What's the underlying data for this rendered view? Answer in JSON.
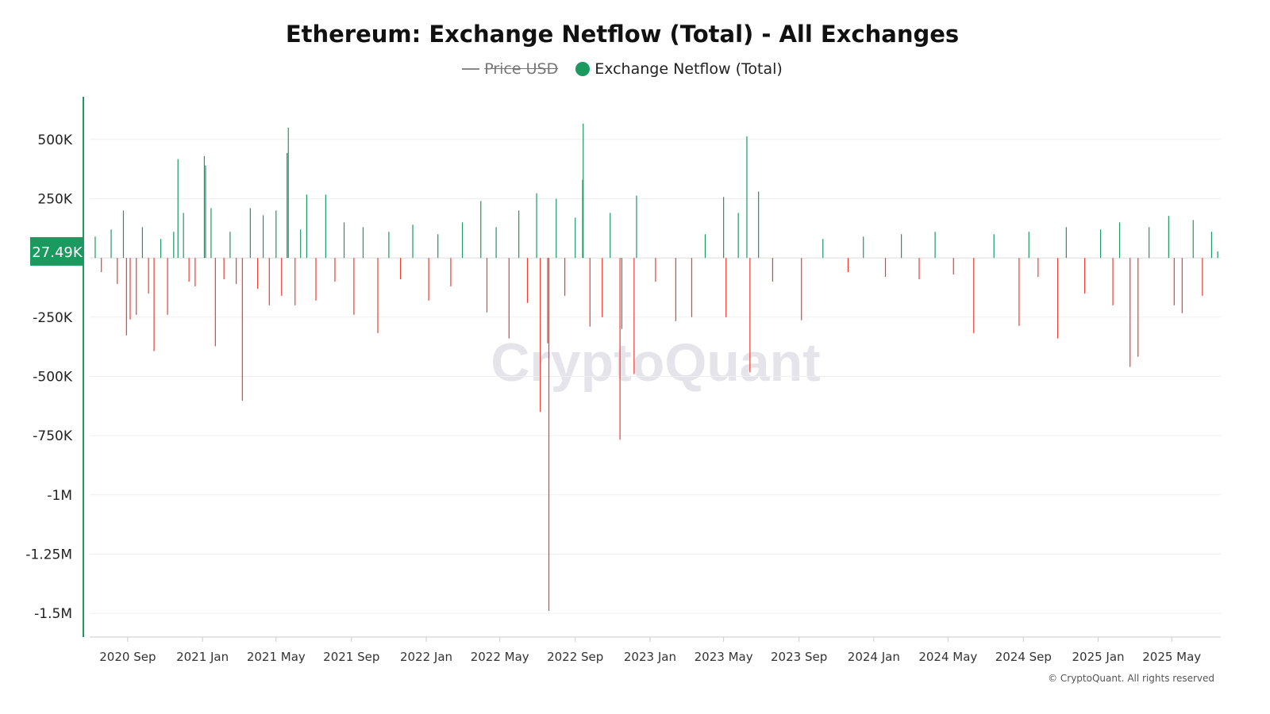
{
  "chart_data": {
    "type": "bar",
    "title": "Ethereum: Exchange Netflow (Total) - All Exchanges",
    "legend": [
      {
        "label": "Price USD",
        "hidden": true,
        "color": "#888888"
      },
      {
        "label": "Exchange Netflow (Total)",
        "hidden": false,
        "color": "#1a9a5f"
      }
    ],
    "legend_position": "top",
    "colors": {
      "positive": "#1a9a5f",
      "negative": "#f23b2f",
      "axis": "#1a9a5f"
    },
    "grid": true,
    "xlim": [
      "2020-07-01",
      "2025-07-20"
    ],
    "ylim": [
      -1600000,
      680000
    ],
    "x_ticks": [
      "2020 Sep",
      "2021 Jan",
      "2021 May",
      "2021 Sep",
      "2022 Jan",
      "2022 May",
      "2022 Sep",
      "2023 Jan",
      "2023 May",
      "2023 Sep",
      "2024 Jan",
      "2024 May",
      "2024 Sep",
      "2025 Jan",
      "2025 May"
    ],
    "y_ticks": [
      {
        "value": 500000,
        "label": "500K"
      },
      {
        "value": 250000,
        "label": "250K"
      },
      {
        "value": -250000,
        "label": "-250K"
      },
      {
        "value": -500000,
        "label": "-500K"
      },
      {
        "value": -750000,
        "label": "-750K"
      },
      {
        "value": -1000000,
        "label": "-1M"
      },
      {
        "value": -1250000,
        "label": "-1.25M"
      },
      {
        "value": -1500000,
        "label": "-1.5M"
      }
    ],
    "current_value_label": "27.49K",
    "points": [
      [
        "2020-07-10",
        90000
      ],
      [
        "2020-07-20",
        -60000
      ],
      [
        "2020-08-05",
        120000
      ],
      [
        "2020-08-15",
        -110000
      ],
      [
        "2020-08-25",
        200000
      ],
      [
        "2020-08-30",
        -327000
      ],
      [
        "2020-09-05",
        -260000
      ],
      [
        "2020-09-15",
        -240000
      ],
      [
        "2020-09-25",
        130000
      ],
      [
        "2020-10-05",
        -150000
      ],
      [
        "2020-10-14",
        -393000
      ],
      [
        "2020-10-25",
        80000
      ],
      [
        "2020-11-05",
        -240000
      ],
      [
        "2020-11-15",
        110000
      ],
      [
        "2020-11-22",
        417000
      ],
      [
        "2020-12-01",
        190000
      ],
      [
        "2020-12-10",
        -100000
      ],
      [
        "2020-12-20",
        -120000
      ],
      [
        "2021-01-04",
        430000
      ],
      [
        "2021-01-06",
        390000
      ],
      [
        "2021-01-15",
        210000
      ],
      [
        "2021-01-22",
        -373000
      ],
      [
        "2021-02-05",
        -90000
      ],
      [
        "2021-02-15",
        110000
      ],
      [
        "2021-02-25",
        -110000
      ],
      [
        "2021-03-07",
        -603000
      ],
      [
        "2021-03-20",
        210000
      ],
      [
        "2021-04-01",
        -130000
      ],
      [
        "2021-04-10",
        180000
      ],
      [
        "2021-04-20",
        -200000
      ],
      [
        "2021-05-01",
        200000
      ],
      [
        "2021-05-10",
        -160000
      ],
      [
        "2021-05-19",
        443000
      ],
      [
        "2021-05-21",
        550000
      ],
      [
        "2021-06-01",
        -200000
      ],
      [
        "2021-06-10",
        120000
      ],
      [
        "2021-06-20",
        267000
      ],
      [
        "2021-07-05",
        -180000
      ],
      [
        "2021-07-21",
        267000
      ],
      [
        "2021-08-05",
        -100000
      ],
      [
        "2021-08-20",
        150000
      ],
      [
        "2021-09-05",
        -240000
      ],
      [
        "2021-09-20",
        130000
      ],
      [
        "2021-10-14",
        -317000
      ],
      [
        "2021-11-01",
        110000
      ],
      [
        "2021-11-20",
        -90000
      ],
      [
        "2021-12-10",
        140000
      ],
      [
        "2022-01-05",
        -180000
      ],
      [
        "2022-01-20",
        100000
      ],
      [
        "2022-02-10",
        -120000
      ],
      [
        "2022-03-01",
        150000
      ],
      [
        "2022-03-31",
        240000
      ],
      [
        "2022-04-10",
        -230000
      ],
      [
        "2022-04-25",
        130000
      ],
      [
        "2022-05-16",
        -340000
      ],
      [
        "2022-06-01",
        200000
      ],
      [
        "2022-06-15",
        -190000
      ],
      [
        "2022-06-30",
        273000
      ],
      [
        "2022-07-06",
        -650000
      ],
      [
        "2022-07-18",
        -360000
      ],
      [
        "2022-07-20",
        -1490000
      ],
      [
        "2022-08-01",
        250000
      ],
      [
        "2022-08-15",
        -160000
      ],
      [
        "2022-09-01",
        170000
      ],
      [
        "2022-09-13",
        330000
      ],
      [
        "2022-09-14",
        567000
      ],
      [
        "2022-09-25",
        -290000
      ],
      [
        "2022-10-15",
        -250000
      ],
      [
        "2022-10-28",
        190000
      ],
      [
        "2022-11-13",
        -767000
      ],
      [
        "2022-11-16",
        -300000
      ],
      [
        "2022-12-06",
        -490000
      ],
      [
        "2022-12-10",
        263000
      ],
      [
        "2023-01-10",
        -100000
      ],
      [
        "2023-02-12",
        -267000
      ],
      [
        "2023-03-10",
        -250000
      ],
      [
        "2023-04-01",
        100000
      ],
      [
        "2023-05-01",
        257000
      ],
      [
        "2023-05-05",
        -250000
      ],
      [
        "2023-05-25",
        190000
      ],
      [
        "2023-06-08",
        513000
      ],
      [
        "2023-06-13",
        -483000
      ],
      [
        "2023-06-27",
        280000
      ],
      [
        "2023-07-20",
        -100000
      ],
      [
        "2023-09-05",
        -263000
      ],
      [
        "2023-10-10",
        80000
      ],
      [
        "2023-11-20",
        -60000
      ],
      [
        "2023-12-15",
        90000
      ],
      [
        "2024-01-20",
        -80000
      ],
      [
        "2024-02-15",
        100000
      ],
      [
        "2024-03-15",
        -90000
      ],
      [
        "2024-04-10",
        110000
      ],
      [
        "2024-05-10",
        -70000
      ],
      [
        "2024-06-12",
        -317000
      ],
      [
        "2024-07-15",
        100000
      ],
      [
        "2024-08-25",
        -287000
      ],
      [
        "2024-09-10",
        110000
      ],
      [
        "2024-09-25",
        -80000
      ],
      [
        "2024-10-27",
        -340000
      ],
      [
        "2024-11-10",
        130000
      ],
      [
        "2024-12-10",
        -150000
      ],
      [
        "2025-01-05",
        120000
      ],
      [
        "2025-01-25",
        -200000
      ],
      [
        "2025-02-05",
        150000
      ],
      [
        "2025-02-22",
        -460000
      ],
      [
        "2025-03-07",
        -417000
      ],
      [
        "2025-03-25",
        130000
      ],
      [
        "2025-04-26",
        177000
      ],
      [
        "2025-05-05",
        -200000
      ],
      [
        "2025-05-18",
        -233000
      ],
      [
        "2025-06-05",
        160000
      ],
      [
        "2025-06-20",
        -160000
      ],
      [
        "2025-07-05",
        110000
      ],
      [
        "2025-07-15",
        27490
      ]
    ]
  },
  "watermark": "CryptoQuant",
  "copyright": "© CryptoQuant. All rights reserved"
}
